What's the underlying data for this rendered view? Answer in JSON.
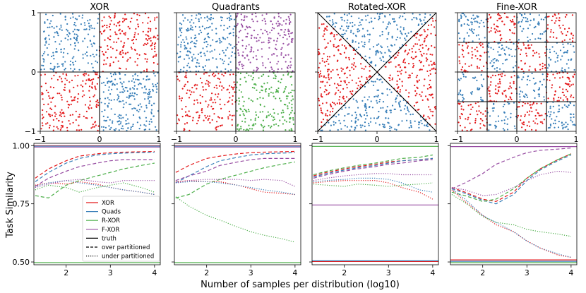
{
  "chart_data": {
    "type": "figure",
    "scatter_panels": [
      {
        "title": "XOR",
        "xticks": [
          "−1",
          "0",
          "1"
        ],
        "yticks": [
          "−1",
          "0",
          "1"
        ],
        "xlim": [
          -1,
          1
        ],
        "ylim": [
          -1,
          1
        ],
        "regions": [
          {
            "x": [
              -1,
              0
            ],
            "y": [
              0,
              1
            ],
            "class": "blue"
          },
          {
            "x": [
              0,
              1
            ],
            "y": [
              0,
              1
            ],
            "class": "red"
          },
          {
            "x": [
              -1,
              0
            ],
            "y": [
              -1,
              0
            ],
            "class": "red"
          },
          {
            "x": [
              0,
              1
            ],
            "y": [
              -1,
              0
            ],
            "class": "blue"
          }
        ],
        "boundaries": [
          [
            [
              0,
              -1
            ],
            [
              0,
              1
            ]
          ],
          [
            [
              -1,
              0
            ],
            [
              1,
              0
            ]
          ]
        ]
      },
      {
        "title": "Quadrants",
        "xticks": [
          "−1",
          "0",
          "1"
        ],
        "yticks": [],
        "xlim": [
          -1,
          1
        ],
        "ylim": [
          -1,
          1
        ],
        "regions": [
          {
            "x": [
              -1,
              0
            ],
            "y": [
              0,
              1
            ],
            "class": "blue"
          },
          {
            "x": [
              0,
              1
            ],
            "y": [
              0,
              1
            ],
            "class": "purple"
          },
          {
            "x": [
              -1,
              0
            ],
            "y": [
              -1,
              0
            ],
            "class": "red"
          },
          {
            "x": [
              0,
              1
            ],
            "y": [
              -1,
              0
            ],
            "class": "green"
          }
        ],
        "boundaries": [
          [
            [
              0,
              -1
            ],
            [
              0,
              1
            ]
          ],
          [
            [
              -1,
              0
            ],
            [
              1,
              0
            ]
          ]
        ]
      },
      {
        "title": "Rotated-XOR",
        "xticks": [
          "−1",
          "0",
          "1"
        ],
        "yticks": [],
        "xlim": [
          -1,
          1
        ],
        "ylim": [
          -1,
          1
        ],
        "regions": "diagonal: top and bottom triangles blue, left and right triangles red",
        "boundaries": [
          [
            [
              -1,
              -1
            ],
            [
              1,
              1
            ]
          ],
          [
            [
              -1,
              1
            ],
            [
              1,
              -1
            ]
          ]
        ]
      },
      {
        "title": "Fine-XOR",
        "xticks": [
          "−1",
          "0",
          "1"
        ],
        "yticks": [],
        "xlim": [
          -1,
          1
        ],
        "ylim": [
          -1,
          1
        ],
        "regions": "4x4 checkerboard, top-left cell blue, alternating red and blue",
        "boundaries": [
          [
            [
              -0.5,
              -1
            ],
            [
              -0.5,
              1
            ]
          ],
          [
            [
              0,
              -1
            ],
            [
              0,
              1
            ]
          ],
          [
            [
              0.5,
              -1
            ],
            [
              0.5,
              1
            ]
          ],
          [
            [
              -1,
              -0.5
            ],
            [
              1,
              -0.5
            ]
          ],
          [
            [
              -1,
              0
            ],
            [
              1,
              0
            ]
          ],
          [
            [
              -1,
              0.5
            ],
            [
              1,
              0.5
            ]
          ]
        ]
      }
    ],
    "line_panels_common": {
      "xlabel": "Number of samples per distribution (log10)",
      "ylabel": "Task Similarity",
      "xlim": [
        1.27,
        4.13
      ],
      "ylim": [
        0.488,
        1.01
      ],
      "xticks": [
        2,
        3,
        4
      ],
      "yticks": [
        0.5,
        0.75,
        1.0
      ],
      "ytick_labels": [
        "0.50",
        "0.75",
        "1.00"
      ],
      "x": [
        1.3,
        1.6,
        2.0,
        2.3,
        2.7,
        3.0,
        3.3,
        3.7,
        4.0
      ]
    },
    "line_panels": [
      {
        "truth": {
          "XOR": 1.0,
          "Quads": 0.998,
          "R-XOR": 0.497,
          "F-XOR": 0.994
        },
        "over": {
          "XOR": [
            0.86,
            0.9,
            0.935,
            0.955,
            0.965,
            0.97,
            0.972,
            0.974,
            0.975
          ],
          "Quads": [
            0.845,
            0.885,
            0.925,
            0.945,
            0.96,
            0.965,
            0.968,
            0.97,
            0.972
          ],
          "R-XOR": [
            0.785,
            0.775,
            0.83,
            0.85,
            0.87,
            0.885,
            0.9,
            0.915,
            0.925
          ],
          "F-XOR": [
            0.825,
            0.86,
            0.89,
            0.91,
            0.925,
            0.935,
            0.94,
            0.94,
            0.94
          ]
        },
        "under": {
          "XOR": [
            0.83,
            0.84,
            0.835,
            0.845,
            0.835,
            0.82,
            0.81,
            0.8,
            0.79
          ],
          "Quads": [
            0.825,
            0.84,
            0.85,
            0.84,
            0.83,
            0.82,
            0.81,
            0.8,
            0.79
          ],
          "R-XOR": [
            0.81,
            0.83,
            0.82,
            0.8,
            0.82,
            0.83,
            0.84,
            0.82,
            0.8
          ],
          "F-XOR": [
            0.82,
            0.835,
            0.85,
            0.855,
            0.845,
            0.84,
            0.85,
            0.85,
            0.85
          ]
        }
      },
      {
        "truth": {
          "XOR": 1.0,
          "Quads": 0.998,
          "R-XOR": 0.497,
          "F-XOR": 0.994
        },
        "over": {
          "XOR": [
            0.885,
            0.915,
            0.945,
            0.955,
            0.965,
            0.97,
            0.972,
            0.974,
            0.975
          ],
          "Quads": [
            0.84,
            0.87,
            0.91,
            0.935,
            0.95,
            0.96,
            0.965,
            0.968,
            0.97
          ],
          "R-XOR": [
            0.775,
            0.79,
            0.835,
            0.855,
            0.875,
            0.89,
            0.905,
            0.92,
            0.93
          ],
          "F-XOR": [
            0.85,
            0.87,
            0.89,
            0.915,
            0.93,
            0.94,
            0.945,
            0.945,
            0.945
          ]
        },
        "under": {
          "XOR": [
            0.845,
            0.85,
            0.845,
            0.845,
            0.83,
            0.815,
            0.8,
            0.795,
            0.79
          ],
          "Quads": [
            0.84,
            0.845,
            0.845,
            0.84,
            0.83,
            0.82,
            0.81,
            0.8,
            0.79
          ],
          "R-XOR": [
            0.78,
            0.74,
            0.7,
            0.68,
            0.65,
            0.63,
            0.615,
            0.6,
            0.585
          ],
          "F-XOR": [
            0.84,
            0.85,
            0.855,
            0.855,
            0.855,
            0.85,
            0.855,
            0.85,
            0.825
          ]
        }
      },
      {
        "truth": {
          "XOR": 0.502,
          "Quads": 0.505,
          "R-XOR": 0.997,
          "F-XOR": 0.745
        },
        "over": {
          "XOR": [
            0.87,
            0.885,
            0.9,
            0.91,
            0.92,
            0.93,
            0.935,
            0.94,
            0.945
          ],
          "Quads": [
            0.865,
            0.88,
            0.895,
            0.905,
            0.915,
            0.925,
            0.935,
            0.94,
            0.945
          ],
          "R-XOR": [
            0.875,
            0.89,
            0.905,
            0.915,
            0.925,
            0.935,
            0.945,
            0.95,
            0.96
          ],
          "F-XOR": [
            0.86,
            0.875,
            0.89,
            0.9,
            0.91,
            0.92,
            0.925,
            0.935,
            0.94
          ]
        },
        "under": {
          "XOR": [
            0.84,
            0.845,
            0.85,
            0.85,
            0.85,
            0.84,
            0.82,
            0.8,
            0.77
          ],
          "Quads": [
            0.845,
            0.85,
            0.855,
            0.86,
            0.86,
            0.855,
            0.84,
            0.81,
            0.8
          ],
          "R-XOR": [
            0.835,
            0.83,
            0.825,
            0.835,
            0.83,
            0.825,
            0.83,
            0.835,
            0.84
          ],
          "F-XOR": [
            0.85,
            0.86,
            0.87,
            0.875,
            0.88,
            0.88,
            0.875,
            0.875,
            0.875
          ]
        }
      },
      {
        "truth": {
          "XOR": 0.509,
          "Quads": 0.503,
          "R-XOR": 0.497,
          "F-XOR": 0.996
        },
        "over": {
          "XOR": [
            0.82,
            0.8,
            0.77,
            0.76,
            0.8,
            0.86,
            0.9,
            0.94,
            0.965
          ],
          "Quads": [
            0.815,
            0.795,
            0.765,
            0.75,
            0.79,
            0.85,
            0.895,
            0.935,
            0.96
          ],
          "R-XOR": [
            0.8,
            0.785,
            0.76,
            0.77,
            0.815,
            0.86,
            0.9,
            0.94,
            0.965
          ],
          "F-XOR": [
            0.815,
            0.84,
            0.88,
            0.92,
            0.95,
            0.97,
            0.98,
            0.985,
            0.99
          ]
        },
        "under": {
          "XOR": [
            0.81,
            0.76,
            0.7,
            0.66,
            0.63,
            0.59,
            0.56,
            0.53,
            0.52
          ],
          "Quads": [
            0.815,
            0.77,
            0.7,
            0.67,
            0.63,
            0.59,
            0.56,
            0.535,
            0.52
          ],
          "R-XOR": [
            0.79,
            0.755,
            0.695,
            0.67,
            0.66,
            0.64,
            0.63,
            0.62,
            0.61
          ],
          "F-XOR": [
            0.82,
            0.81,
            0.785,
            0.79,
            0.82,
            0.85,
            0.875,
            0.89,
            0.885
          ]
        }
      }
    ],
    "legend": {
      "position": "inside first line panel, lower-right",
      "entries": [
        {
          "label": "XOR",
          "kind": "line",
          "color": "#e41a1c"
        },
        {
          "label": "Quads",
          "kind": "line",
          "color": "#377eb8"
        },
        {
          "label": "R-XOR",
          "kind": "line",
          "color": "#4daf4a"
        },
        {
          "label": "F-XOR",
          "kind": "line",
          "color": "#984ea3"
        },
        {
          "label": "truth",
          "kind": "solid",
          "color": "#000000"
        },
        {
          "label": "over partitioned",
          "kind": "dashed",
          "color": "#000000"
        },
        {
          "label": "under partitioned",
          "kind": "dotted",
          "color": "#000000"
        }
      ]
    },
    "colors": {
      "red": "#e41a1c",
      "blue": "#377eb8",
      "green": "#4daf4a",
      "purple": "#984ea3"
    },
    "series_order": [
      "XOR",
      "Quads",
      "R-XOR",
      "F-XOR"
    ],
    "series_colors": {
      "XOR": "#e41a1c",
      "Quads": "#377eb8",
      "R-XOR": "#4daf4a",
      "F-XOR": "#984ea3"
    }
  }
}
